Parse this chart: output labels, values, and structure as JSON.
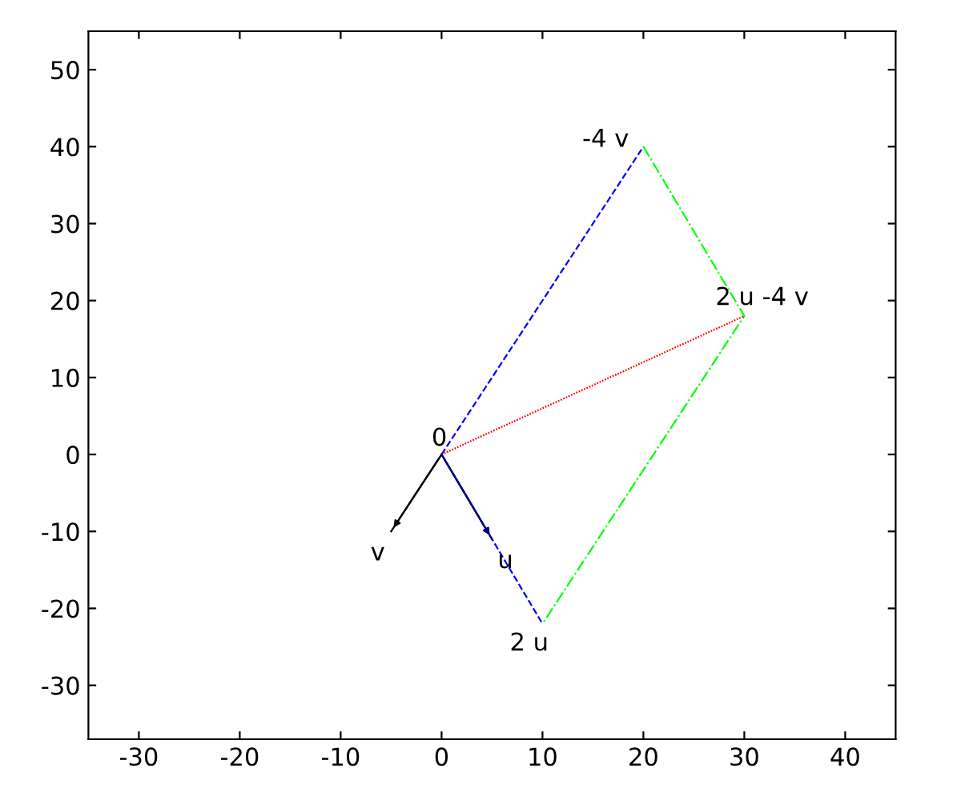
{
  "chart_data": {
    "type": "line",
    "xlim": [
      -35,
      45
    ],
    "ylim": [
      -37,
      55
    ],
    "xticks": [
      -30,
      -20,
      -10,
      0,
      10,
      20,
      30,
      40
    ],
    "yticks": [
      -30,
      -20,
      -10,
      0,
      10,
      20,
      30,
      40,
      50
    ],
    "series": [
      {
        "color": "#0000ff",
        "line_style": "dashed",
        "x": [
          0,
          20
        ],
        "values": [
          0,
          40
        ]
      },
      {
        "color": "#0000ff",
        "line_style": "dashed",
        "x": [
          0,
          10
        ],
        "values": [
          0,
          -22
        ]
      },
      {
        "color": "#00ff00",
        "line_style": "dashed",
        "x": [
          20,
          30,
          10
        ],
        "values": [
          40,
          18,
          -22
        ]
      },
      {
        "color": "#ff0000",
        "line_style": "dotted",
        "x": [
          0,
          30
        ],
        "values": [
          0,
          18
        ]
      },
      {
        "color": "#000000",
        "line_style": "solid",
        "x": [
          0,
          -5
        ],
        "values": [
          0,
          -10
        ]
      },
      {
        "color": "#000080",
        "line_style": "solid",
        "x": [
          0,
          5
        ],
        "values": [
          0,
          -11
        ]
      }
    ],
    "annotations": [
      {
        "text": "0",
        "x": 0,
        "y": 0
      },
      {
        "text": "v",
        "x": -5,
        "y": -10
      },
      {
        "text": "u",
        "x": 5,
        "y": -11
      },
      {
        "text": "2 u",
        "x": 10,
        "y": -22
      },
      {
        "text": "-4 v",
        "x": 20,
        "y": 40
      },
      {
        "text": "2 u -4 v",
        "x": 30,
        "y": 18
      }
    ],
    "grid": false,
    "legend": false
  }
}
